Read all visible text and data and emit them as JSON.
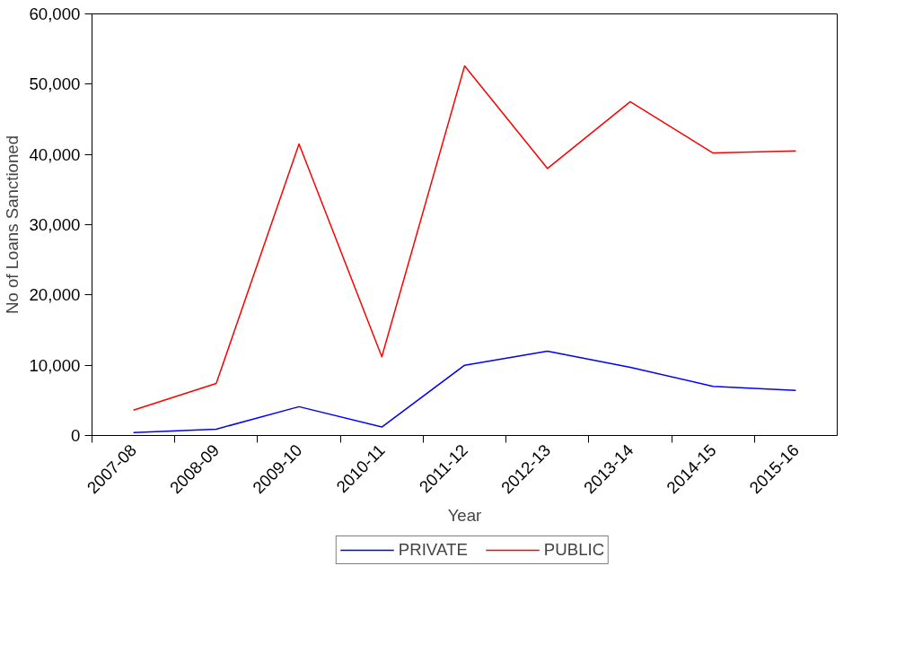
{
  "chart_data": {
    "type": "line",
    "xlabel": "Year",
    "ylabel": "No of Loans Sanctioned",
    "categories": [
      "2007-08",
      "2008-09",
      "2009-10",
      "2010-11",
      "2011-12",
      "2012-13",
      "2013-14",
      "2014-15",
      "2015-16"
    ],
    "series": [
      {
        "name": "PRIVATE",
        "color": "#0000ff",
        "values": [
          400,
          900,
          4100,
          1200,
          10000,
          12000,
          9700,
          7000,
          6400
        ]
      },
      {
        "name": "PUBLIC",
        "color": "#ff0000",
        "values": [
          3600,
          7400,
          41500,
          11200,
          52600,
          38000,
          47500,
          40200,
          40500
        ]
      }
    ],
    "ylim": [
      0,
      60000
    ],
    "yticks": [
      {
        "value": 0,
        "label": "0"
      },
      {
        "value": 10000,
        "label": "10,000"
      },
      {
        "value": 20000,
        "label": "20,000"
      },
      {
        "value": 30000,
        "label": "30,000"
      },
      {
        "value": 40000,
        "label": "40,000"
      },
      {
        "value": 50000,
        "label": "50,000"
      },
      {
        "value": 60000,
        "label": "60,000"
      }
    ],
    "grid": false,
    "legend": "bottom",
    "marker": "none",
    "line_style": "solid"
  }
}
